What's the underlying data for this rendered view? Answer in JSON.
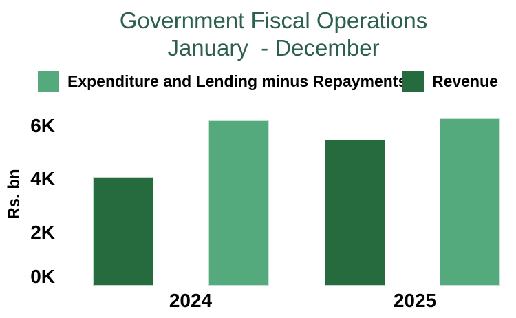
{
  "colors": {
    "expenditure": "#54AA7D",
    "revenue": "#266B3E",
    "title_text": "#2D5F4E",
    "axis_text": "#000000",
    "background": "#FFFFFF"
  },
  "chart_data": {
    "type": "bar",
    "title": "Government Fiscal Operations",
    "subtitle": "January  - December",
    "categories": [
      "2024",
      "2025"
    ],
    "series": [
      {
        "name": "Expenditure and Lending minus Repayments",
        "color": "#54AA7D",
        "values": [
          6200,
          6300
        ]
      },
      {
        "name": "Revenue",
        "color": "#266B3E",
        "values": [
          4100,
          5500
        ]
      }
    ],
    "ylabel": "Rs. bn",
    "yticks": [
      {
        "value": 0,
        "label": "0K"
      },
      {
        "value": 2000,
        "label": "2K"
      },
      {
        "value": 4000,
        "label": "4K"
      },
      {
        "value": 6000,
        "label": "6K"
      }
    ],
    "ylim": [
      0,
      6600
    ],
    "grid": false,
    "legend_position": "top",
    "bar_order_in_group": [
      "Revenue",
      "Expenditure and Lending minus Repayments"
    ],
    "units": "Rs. bn"
  }
}
